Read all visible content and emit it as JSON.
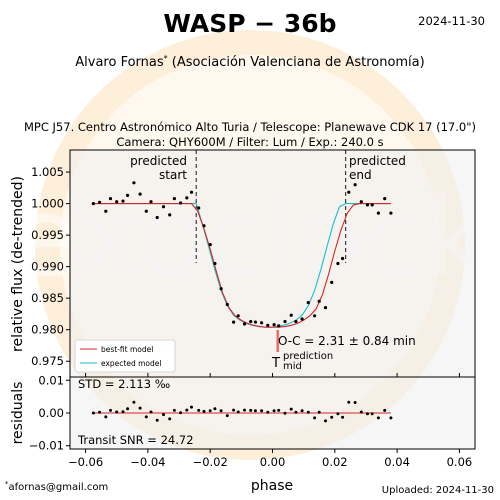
{
  "header": {
    "title": "WASP − 36b",
    "date": "2024-11-30",
    "observer": "Alvaro Fornas",
    "observer_mark": "*",
    "affiliation": "(Asociación Valenciana de Astronomía)",
    "setup_line1": "MPC J57. Centro Astronómico Alto Turia / Telescope: Planewave CDK 17 (17.0\")",
    "setup_line2": "Camera: QHY600M / Filter: Lum / Exp.: 240.0 s"
  },
  "footer": {
    "contact_mark": "*",
    "contact": "afornas@gmail.com",
    "uploaded": "Uploaded: 2024-11-30"
  },
  "watermark": {
    "text": "exoclock"
  },
  "colors": {
    "best_fit": "#d62728",
    "expected": "#17becf",
    "points": "#000000",
    "plot_bg": "#eeeeee",
    "watermark_ring": "#fde6c8"
  },
  "chart_data": {
    "type": "scatter",
    "xlabel": "phase",
    "ylabel": "relative flux (de-trended)",
    "xlim": [
      -0.065,
      0.065
    ],
    "ylim": [
      0.9725,
      1.0085
    ],
    "xticks": [
      -0.06,
      -0.04,
      -0.02,
      0.0,
      0.02,
      0.04,
      0.06
    ],
    "xtick_labels": [
      "−0.06",
      "−0.04",
      "−0.02",
      "0.00",
      "0.02",
      "0.04",
      "0.06"
    ],
    "yticks": [
      0.975,
      0.98,
      0.985,
      0.99,
      0.995,
      1.0,
      1.005
    ],
    "ytick_labels": [
      "0.975",
      "0.980",
      "0.985",
      "0.990",
      "0.995",
      "1.000",
      "1.005"
    ],
    "predicted_start": -0.0245,
    "predicted_end": 0.0235,
    "label_predicted": "predicted",
    "label_start": "start",
    "label_end": "end",
    "observations": [
      {
        "x": -0.0575,
        "y": 1.0
      },
      {
        "x": -0.0555,
        "y": 1.0002
      },
      {
        "x": -0.0535,
        "y": 0.9988
      },
      {
        "x": -0.052,
        "y": 1.0008
      },
      {
        "x": -0.05,
        "y": 1.0003
      },
      {
        "x": -0.048,
        "y": 1.0004
      },
      {
        "x": -0.0465,
        "y": 1.0013
      },
      {
        "x": -0.0445,
        "y": 1.0033
      },
      {
        "x": -0.0425,
        "y": 1.0015
      },
      {
        "x": -0.0405,
        "y": 0.9988
      },
      {
        "x": -0.039,
        "y": 1.0003
      },
      {
        "x": -0.037,
        "y": 0.9978
      },
      {
        "x": -0.035,
        "y": 0.9995
      },
      {
        "x": -0.033,
        "y": 0.9982
      },
      {
        "x": -0.0315,
        "y": 1.0008
      },
      {
        "x": -0.0295,
        "y": 1.0001
      },
      {
        "x": -0.0275,
        "y": 1.0009
      },
      {
        "x": -0.026,
        "y": 1.0018
      },
      {
        "x": -0.0237,
        "y": 0.9993
      },
      {
        "x": -0.022,
        "y": 0.9965
      },
      {
        "x": -0.02,
        "y": 0.9935
      },
      {
        "x": -0.0185,
        "y": 0.9905
      },
      {
        "x": -0.0165,
        "y": 0.9865
      },
      {
        "x": -0.0145,
        "y": 0.984
      },
      {
        "x": -0.0125,
        "y": 0.9812
      },
      {
        "x": -0.011,
        "y": 0.9822
      },
      {
        "x": -0.009,
        "y": 0.9809
      },
      {
        "x": -0.007,
        "y": 0.9813
      },
      {
        "x": -0.0055,
        "y": 0.9812
      },
      {
        "x": -0.0035,
        "y": 0.9811
      },
      {
        "x": -0.0015,
        "y": 0.9807
      },
      {
        "x": 0.0005,
        "y": 0.9808
      },
      {
        "x": 0.002,
        "y": 0.9806
      },
      {
        "x": 0.004,
        "y": 0.9813
      },
      {
        "x": 0.006,
        "y": 0.9823
      },
      {
        "x": 0.0075,
        "y": 0.9813
      },
      {
        "x": 0.0095,
        "y": 0.9817
      },
      {
        "x": 0.0115,
        "y": 0.9843
      },
      {
        "x": 0.0135,
        "y": 0.9822
      },
      {
        "x": 0.015,
        "y": 0.9845
      },
      {
        "x": 0.017,
        "y": 0.9835
      },
      {
        "x": 0.019,
        "y": 0.9875
      },
      {
        "x": 0.021,
        "y": 0.9905
      },
      {
        "x": 0.0225,
        "y": 0.9913
      },
      {
        "x": 0.0245,
        "y": 1.0018
      },
      {
        "x": 0.0265,
        "y": 1.003
      },
      {
        "x": 0.0285,
        "y": 1.0003
      },
      {
        "x": 0.0305,
        "y": 0.9998
      },
      {
        "x": 0.032,
        "y": 0.9998
      },
      {
        "x": 0.034,
        "y": 0.9985
      },
      {
        "x": 0.036,
        "y": 1.0008
      },
      {
        "x": 0.038,
        "y": 0.9985
      }
    ],
    "best_fit": {
      "name": "best-fit model",
      "x": [
        -0.058,
        -0.026,
        -0.024,
        -0.022,
        -0.02,
        -0.018,
        -0.016,
        -0.014,
        -0.012,
        -0.01,
        -0.008,
        -0.006,
        -0.004,
        -0.002,
        0.0,
        0.002,
        0.004,
        0.006,
        0.008,
        0.01,
        0.012,
        0.014,
        0.016,
        0.018,
        0.02,
        0.022,
        0.024,
        0.026,
        0.028,
        0.038
      ],
      "y": [
        1.0,
        1.0,
        0.9988,
        0.996,
        0.9928,
        0.9892,
        0.9858,
        0.9835,
        0.9822,
        0.9815,
        0.981,
        0.9807,
        0.9805,
        0.9804,
        0.9804,
        0.9804,
        0.9805,
        0.9807,
        0.981,
        0.9815,
        0.9822,
        0.9833,
        0.9855,
        0.9888,
        0.9925,
        0.9958,
        0.9985,
        0.9998,
        1.0,
        1.0
      ]
    },
    "expected": {
      "name": "expected model",
      "x": [
        -0.058,
        -0.0245,
        -0.0225,
        -0.0205,
        -0.0185,
        -0.0165,
        -0.0145,
        -0.0125,
        -0.0105,
        -0.0085,
        -0.0065,
        -0.0045,
        -0.0025,
        -0.0005,
        0.0015,
        0.0035,
        0.0055,
        0.0075,
        0.0095,
        0.0115,
        0.0135,
        0.0155,
        0.0175,
        0.0195,
        0.0215,
        0.0235,
        0.0255,
        0.038
      ],
      "y": [
        1.0,
        1.0,
        0.9968,
        0.9932,
        0.9895,
        0.9862,
        0.9838,
        0.9823,
        0.9815,
        0.981,
        0.9807,
        0.9805,
        0.9804,
        0.9804,
        0.9805,
        0.9807,
        0.981,
        0.9815,
        0.9823,
        0.9838,
        0.9862,
        0.9895,
        0.9932,
        0.9968,
        0.9995,
        1.0,
        1.0,
        1.0
      ]
    },
    "legend": {
      "location": "lower-left",
      "entries": [
        "best-fit model",
        "expected model"
      ]
    },
    "oc_text": "O-C = 2.31 ± 0.84 min",
    "oc_value": 0.0016,
    "oc_uncertainty": 0.00058,
    "prediction_marker": "T",
    "prediction_label_top": "prediction",
    "prediction_label_bottom": "mid",
    "residuals": {
      "ylabel": "residuals",
      "ylim": [
        -0.011,
        0.011
      ],
      "yticks": [
        -0.01,
        0.0,
        0.01
      ],
      "ytick_labels": [
        "−0.01",
        "0.00",
        "0.01"
      ],
      "std_text": "STD = 2.113 ‰",
      "snr_text": "Transit SNR = 24.72",
      "values": [
        0.0,
        0.0002,
        -0.0012,
        0.0008,
        0.0003,
        0.0004,
        0.0013,
        0.0033,
        0.0015,
        -0.0012,
        0.0003,
        -0.0022,
        -0.0005,
        -0.0018,
        0.0008,
        0.0001,
        0.0009,
        0.0018,
        0.0008,
        0.0005,
        0.0007,
        0.0013,
        0.0007,
        -0.0008,
        0.0009,
        0.0003,
        0.0009,
        0.0008,
        0.0007,
        0.0007,
        0.0002,
        0.0007,
        0.0008,
        -0.0001,
        0.0012,
        0.0002,
        0.0007,
        0.0002,
        -0.0015,
        0.0002,
        -0.0024,
        -0.0013,
        -0.0002,
        -0.0013,
        0.0033,
        0.0032,
        0.0003,
        -0.0002,
        -0.0002,
        -0.0015,
        0.0008,
        -0.0015
      ]
    }
  }
}
